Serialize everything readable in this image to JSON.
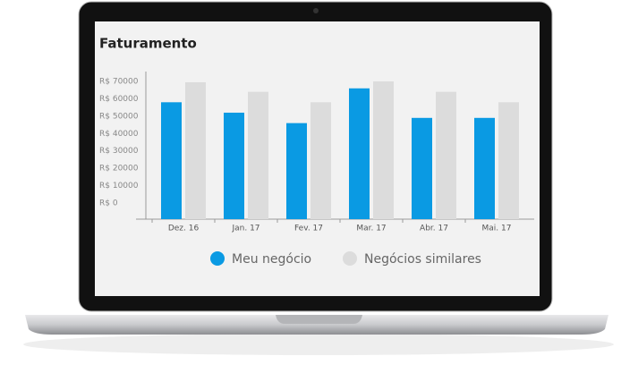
{
  "chart_data": {
    "type": "bar",
    "title": "Faturamento",
    "categories": [
      "Dez. 16",
      "Jan. 17",
      "Fev. 17",
      "Mar. 17",
      "Abr. 17",
      "Mai. 17"
    ],
    "series": [
      {
        "name": "Meu negócio",
        "color": "#0a9ae3",
        "values": [
          58000,
          52000,
          46000,
          66000,
          49000,
          49000
        ]
      },
      {
        "name": "Negócios similares",
        "color": "#dcdcdc",
        "values": [
          69500,
          64000,
          58000,
          70000,
          64000,
          58000
        ]
      }
    ],
    "ylim": [
      0,
      70000
    ],
    "yticks": [
      {
        "value": 0,
        "label": "R$ 0"
      },
      {
        "value": 10000,
        "label": "R$ 10000"
      },
      {
        "value": 20000,
        "label": "R$ 20000"
      },
      {
        "value": 30000,
        "label": "R$ 30000"
      },
      {
        "value": 40000,
        "label": "R$ 40000"
      },
      {
        "value": 50000,
        "label": "R$ 50000"
      },
      {
        "value": 60000,
        "label": "R$ 60000"
      },
      {
        "value": 70000,
        "label": "R$ 70000"
      }
    ]
  }
}
